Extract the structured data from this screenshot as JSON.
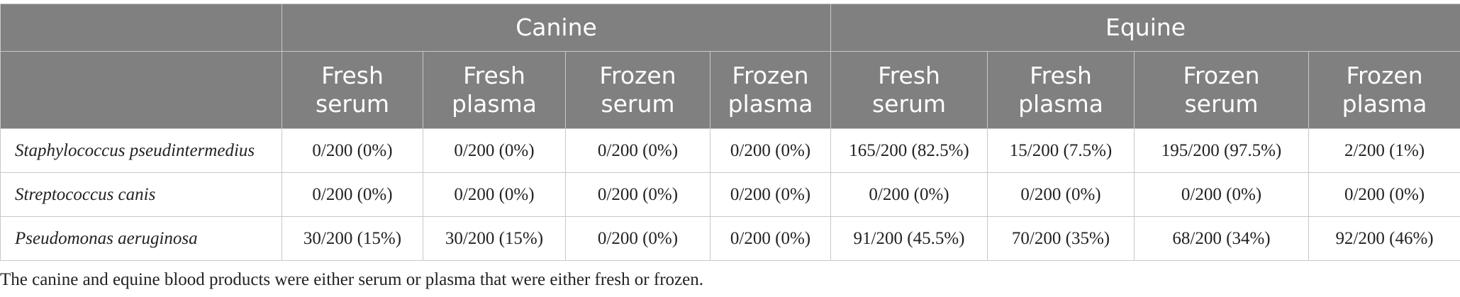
{
  "table": {
    "groups": [
      "Canine",
      "Equine"
    ],
    "columns": [
      "Fresh serum",
      "Fresh plasma",
      "Frozen serum",
      "Frozen plasma",
      "Fresh serum",
      "Fresh plasma",
      "Frozen serum",
      "Frozen plasma"
    ],
    "rows": [
      {
        "label": "Staphylococcus pseudintermedius",
        "cells": [
          "0/200 (0%)",
          "0/200 (0%)",
          "0/200 (0%)",
          "0/200 (0%)",
          "165/200 (82.5%)",
          "15/200 (7.5%)",
          "195/200 (97.5%)",
          "2/200 (1%)"
        ]
      },
      {
        "label": "Streptococcus canis",
        "cells": [
          "0/200 (0%)",
          "0/200 (0%)",
          "0/200 (0%)",
          "0/200 (0%)",
          "0/200 (0%)",
          "0/200 (0%)",
          "0/200 (0%)",
          "0/200 (0%)"
        ]
      },
      {
        "label": "Pseudomonas aeruginosa",
        "cells": [
          "30/200 (15%)",
          "30/200 (15%)",
          "0/200 (0%)",
          "0/200 (0%)",
          "91/200 (45.5%)",
          "70/200 (35%)",
          "68/200 (34%)",
          "92/200 (46%)"
        ]
      }
    ]
  },
  "footnote": "The canine and equine blood products were either serum or plasma that were either fresh or frozen."
}
